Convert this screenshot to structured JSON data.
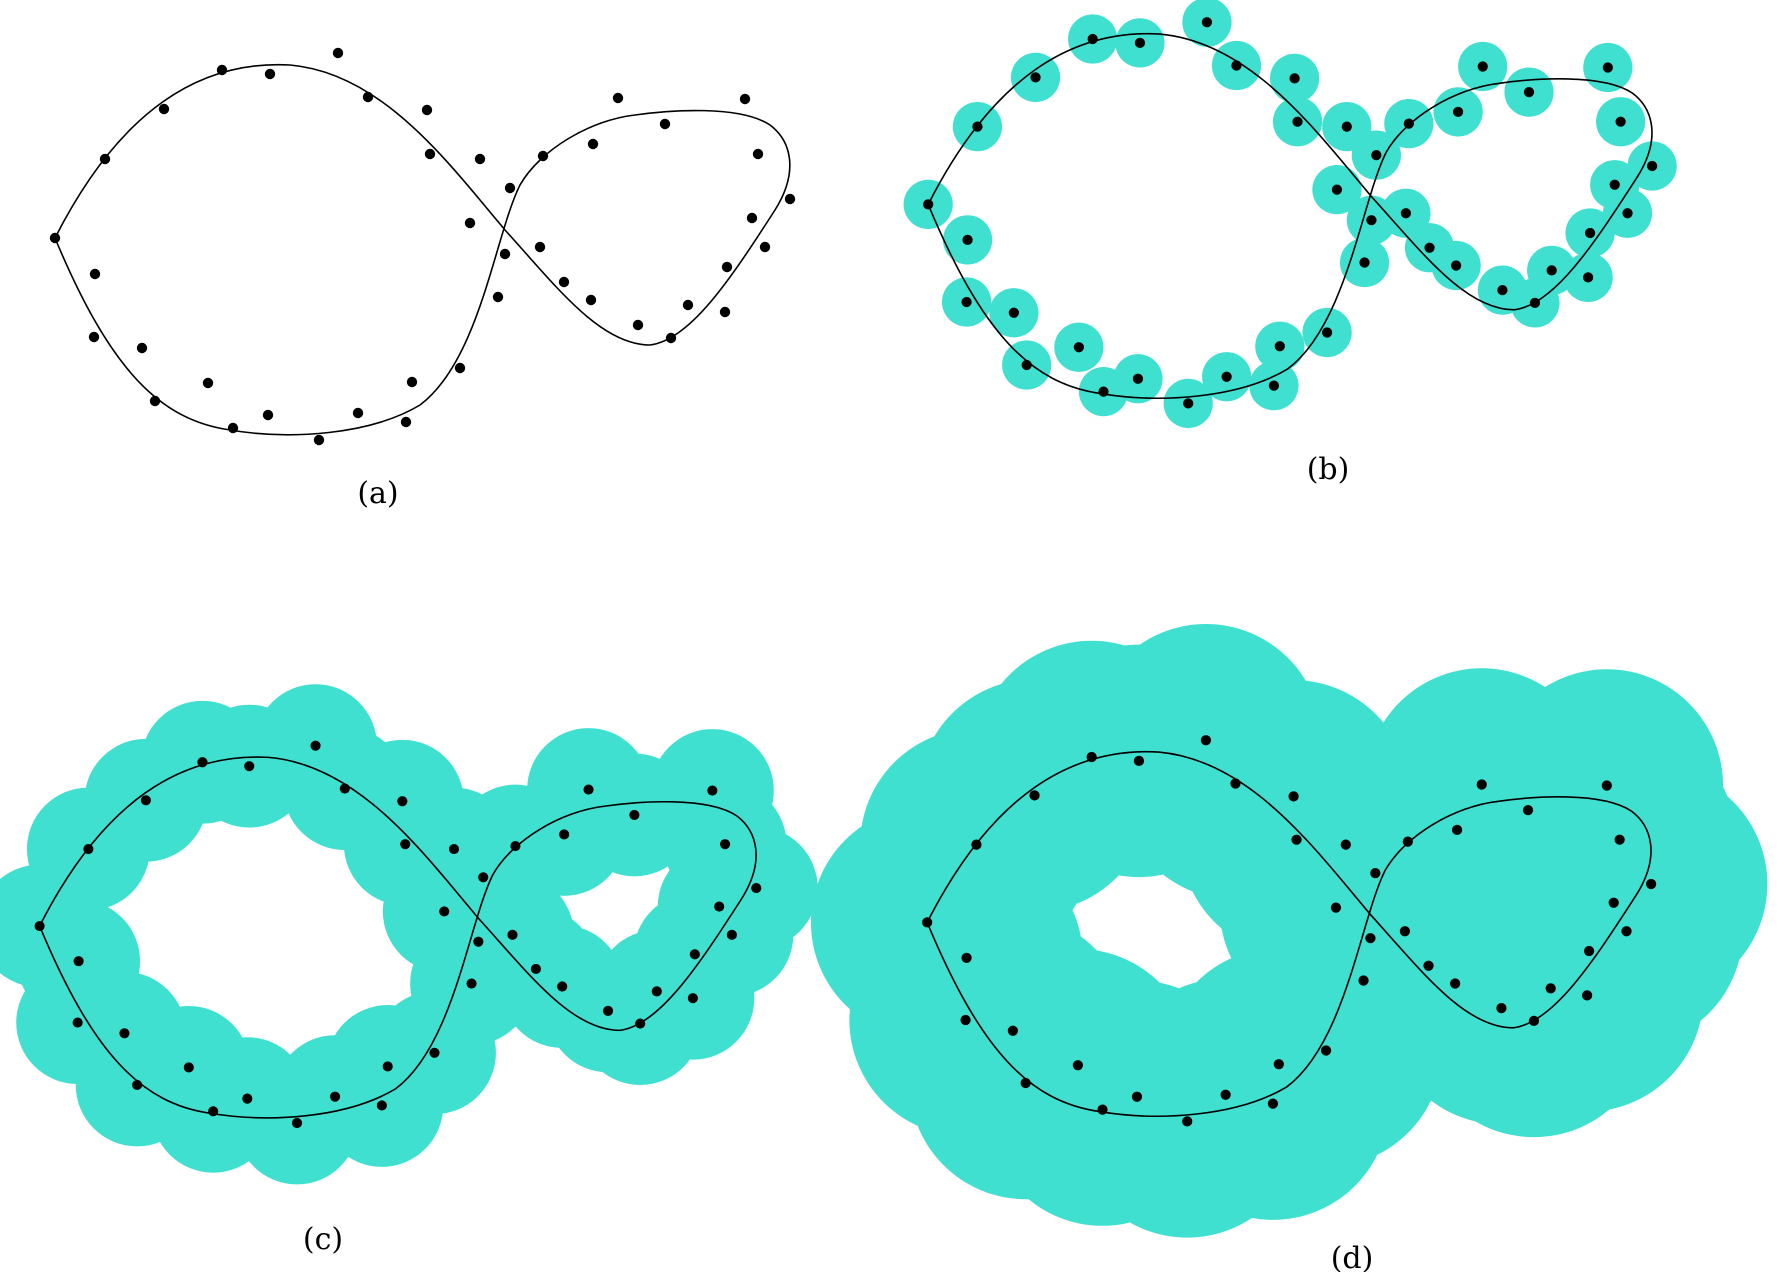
{
  "figure": {
    "colors": {
      "ball": "#40E0D0",
      "point": "#000000",
      "curve": "#000000"
    },
    "panels": [
      {
        "id": "a",
        "label": "(a)",
        "ball_radius": 0
      },
      {
        "id": "b",
        "label": "(b)",
        "ball_radius": 25
      },
      {
        "id": "c",
        "label": "(c)",
        "ball_radius": 63
      },
      {
        "id": "d",
        "label": "(d)",
        "ball_radius": 118
      }
    ]
  }
}
